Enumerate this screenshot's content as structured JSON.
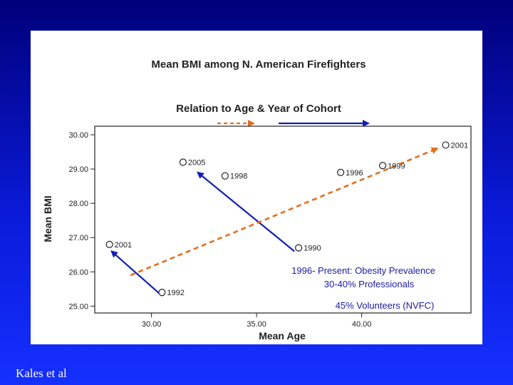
{
  "slide": {
    "credit": "Kales et al",
    "notes": [
      "1996- Present: Obesity Prevalence",
      "30-40% Professionals",
      "45% Volunteers (NVFC)"
    ]
  },
  "chart_data": {
    "type": "scatter",
    "title": "Mean BMI among N. American Firefighters",
    "subtitle": "Relation to Age & Year of Cohort",
    "xlabel": "Mean Age",
    "ylabel": "Mean BMI",
    "xlim": [
      27.3,
      45.2
    ],
    "ylim": [
      24.8,
      30.25
    ],
    "xticks": [
      30,
      35,
      40
    ],
    "xtick_labels": [
      "30.00",
      "35.00",
      "40.00"
    ],
    "yticks": [
      25,
      26,
      27,
      28,
      29,
      30
    ],
    "ytick_labels": [
      "25.00",
      "26.00",
      "27.00",
      "28.00",
      "29.00",
      "30.00"
    ],
    "grid": false,
    "points": [
      {
        "label": "2001",
        "x": 28.0,
        "y": 26.8
      },
      {
        "label": "1992",
        "x": 30.5,
        "y": 25.4
      },
      {
        "label": "2005",
        "x": 31.5,
        "y": 29.2
      },
      {
        "label": "1998",
        "x": 33.5,
        "y": 28.8
      },
      {
        "label": "1990",
        "x": 37.0,
        "y": 26.7
      },
      {
        "label": "1996",
        "x": 39.0,
        "y": 28.9
      },
      {
        "label": "1999",
        "x": 41.0,
        "y": 29.1
      },
      {
        "label": "2001",
        "x": 44.0,
        "y": 29.7
      }
    ],
    "trend_arrows": [
      {
        "style": "solid",
        "color": "#1020b0",
        "from": [
          30.5,
          25.3
        ],
        "to": [
          28.1,
          26.6
        ]
      },
      {
        "style": "solid",
        "color": "#1020b0",
        "from": [
          36.8,
          26.6
        ],
        "to": [
          32.2,
          28.9
        ]
      },
      {
        "style": "dashed",
        "color": "#e07020",
        "from": [
          29.0,
          25.9
        ],
        "to": [
          43.6,
          29.6
        ]
      }
    ],
    "legend_arrows": [
      {
        "style": "dashed",
        "color": "#e07020"
      },
      {
        "style": "solid",
        "color": "#1020b0"
      }
    ]
  }
}
